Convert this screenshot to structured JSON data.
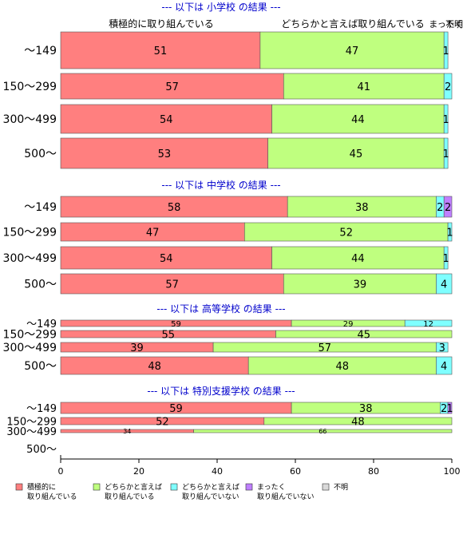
{
  "chart_data": {
    "type": "bar",
    "orientation": "horizontal",
    "stacked": true,
    "xlim": [
      0,
      100
    ],
    "x_ticks": [
      "0",
      "20",
      "40",
      "60",
      "80",
      "100"
    ],
    "series": [
      {
        "name": "積極的に取り組んでいる",
        "color": "#ff7f7f"
      },
      {
        "name": "どちらかと言えば取り組んでいる",
        "color": "#bfff7f"
      },
      {
        "name": "どちらかと言えば取り組んでいない",
        "color": "#7fffff"
      },
      {
        "name": "まったく取り組んでいない",
        "color": "#bf7fff"
      },
      {
        "name": "不明",
        "color": "#d9d9d9"
      }
    ],
    "legend_labels": [
      [
        "積極的に",
        "取り組んでいる"
      ],
      [
        "どちらかと言えば",
        "取り組んでいる"
      ],
      [
        "どちらかと言えば",
        "取り組んでいない"
      ],
      [
        "まったく",
        "取り組んでいない"
      ],
      [
        "不明"
      ]
    ],
    "top_header_labels": [
      "積極的に取り組んでいる",
      "どちらかと言えば取り組んでいる",
      "まったく",
      "不明"
    ],
    "groups": [
      {
        "title": "--- 以下は 小学校 の結果 ---",
        "rows": [
          {
            "label": "〜149",
            "values": [
              51,
              47,
              1,
              0,
              0
            ]
          },
          {
            "label": "150〜299",
            "values": [
              57,
              41,
              2,
              0,
              0
            ]
          },
          {
            "label": "300〜499",
            "values": [
              54,
              44,
              1,
              0,
              0
            ]
          },
          {
            "label": "500〜",
            "values": [
              53,
              45,
              1,
              0,
              0
            ]
          }
        ]
      },
      {
        "title": "--- 以下は 中学校 の結果 ---",
        "rows": [
          {
            "label": "〜149",
            "values": [
              58,
              38,
              2,
              2,
              0
            ]
          },
          {
            "label": "150〜299",
            "values": [
              47,
              52,
              1,
              0,
              0
            ]
          },
          {
            "label": "300〜499",
            "values": [
              54,
              44,
              1,
              0,
              0
            ]
          },
          {
            "label": "500〜",
            "values": [
              57,
              39,
              4,
              0,
              0
            ]
          }
        ]
      },
      {
        "title": "--- 以下は 高等学校 の結果 ---",
        "rows": [
          {
            "label": "〜149",
            "values": [
              59,
              29,
              12,
              0,
              0
            ]
          },
          {
            "label": "150〜299",
            "values": [
              55,
              45,
              0,
              0,
              0
            ]
          },
          {
            "label": "300〜499",
            "values": [
              39,
              57,
              3,
              0,
              0
            ]
          },
          {
            "label": "500〜",
            "values": [
              48,
              48,
              4,
              0,
              0
            ]
          }
        ]
      },
      {
        "title": "--- 以下は 特別支援学校 の結果 ---",
        "rows": [
          {
            "label": "〜149",
            "values": [
              59,
              38,
              2,
              1,
              0
            ]
          },
          {
            "label": "150〜299",
            "values": [
              52,
              48,
              0,
              0,
              0
            ]
          },
          {
            "label": "300〜499",
            "values": [
              34,
              66,
              0,
              0,
              0
            ]
          },
          {
            "label": "500〜",
            "values": [
              0,
              0,
              0,
              0,
              0
            ]
          }
        ]
      }
    ]
  }
}
